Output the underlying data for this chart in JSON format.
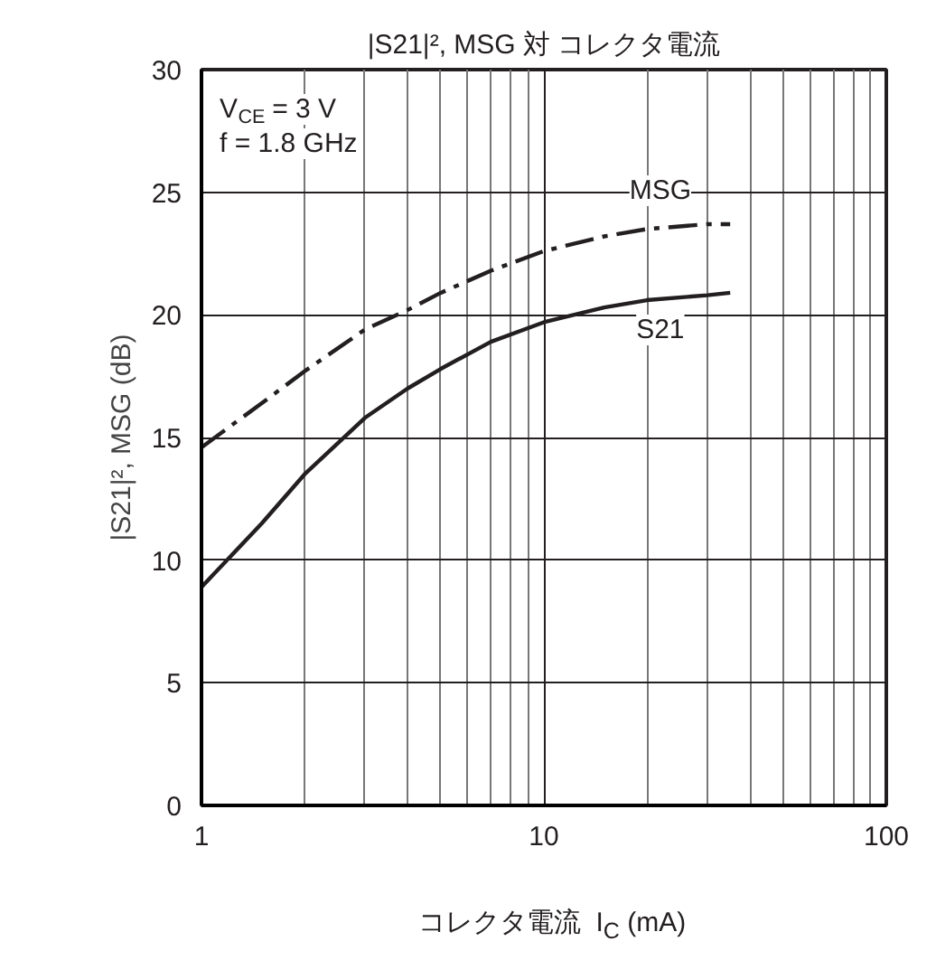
{
  "chart_data": {
    "type": "line",
    "title": "|S21|², MSG 対 コレクタ電流",
    "xlabel": "コレクタ電流  I$_{C}$ (mA)",
    "ylabel": "|S21|², MSG (dB)",
    "annotations": [
      "V$_{CE}$ = 3 V",
      "f = 1.8 GHz"
    ],
    "log": "x",
    "grid": true,
    "line_style": "solid",
    "xlim": [
      1,
      100
    ],
    "xticks": [
      1,
      10,
      100
    ],
    "ylim": [
      0,
      30
    ],
    "yticks": [
      0,
      5,
      10,
      15,
      20,
      25,
      30
    ],
    "series": [
      {
        "name": "MSG",
        "color": "#231f20",
        "line_style": "dashed",
        "x": [
          1,
          1.5,
          2,
          3,
          4,
          5,
          7,
          10,
          15,
          20,
          30,
          35
        ],
        "values": [
          14.6,
          16.4,
          17.7,
          19.4,
          20.2,
          20.9,
          21.8,
          22.6,
          23.2,
          23.5,
          23.7,
          23.7
        ]
      },
      {
        "name": "S21",
        "color": "#231f20",
        "x": [
          1,
          1.5,
          2,
          3,
          4,
          5,
          7,
          10,
          15,
          20,
          30,
          35
        ],
        "values": [
          8.9,
          11.5,
          13.5,
          15.8,
          17.0,
          17.8,
          18.9,
          19.7,
          20.3,
          20.6,
          20.8,
          20.9
        ]
      }
    ]
  }
}
